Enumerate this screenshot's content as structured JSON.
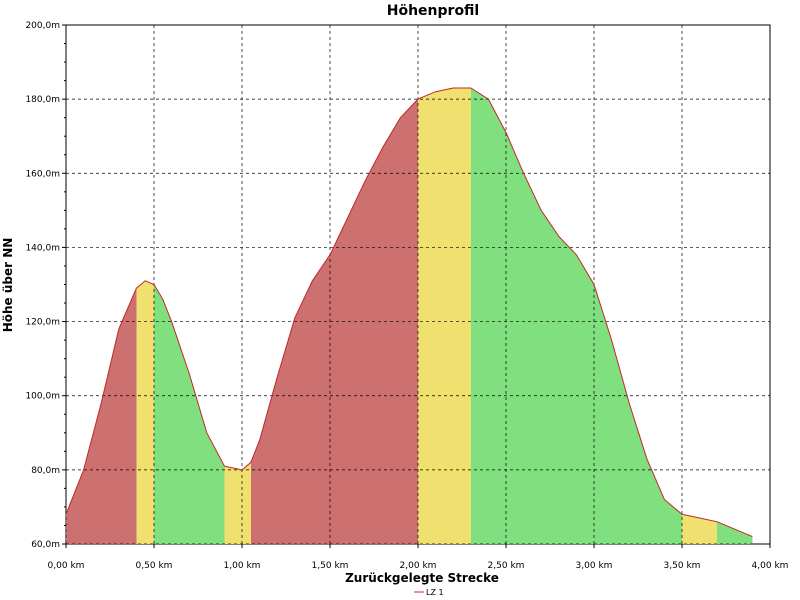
{
  "chart_data": {
    "type": "area",
    "title": "Höhenprofil",
    "xlabel": "Zurückgelegte Strecke",
    "ylabel": "Höhe über NN",
    "xlim": [
      0,
      4
    ],
    "ylim": [
      60,
      200
    ],
    "x_ticks": [
      0,
      0.5,
      1,
      1.5,
      2,
      2.5,
      3,
      3.5,
      4
    ],
    "x_tick_labels": [
      "0,00 km",
      "0,50 km",
      "1,00 km",
      "1,50 km",
      "2,00 km",
      "2,50 km",
      "3,00 km",
      "3,50 km",
      "4,00 km"
    ],
    "y_ticks": [
      60,
      80,
      100,
      120,
      140,
      160,
      180,
      200
    ],
    "y_tick_labels": [
      "60,0m",
      "80,0m",
      "100,0m",
      "120,0m",
      "140,0m",
      "160,0m",
      "180,0m",
      "200,0m"
    ],
    "grid": true,
    "legend_position": "bottom-center",
    "series": [
      {
        "name": "LZ 1",
        "x": [
          0,
          0.1,
          0.2,
          0.3,
          0.4,
          0.45,
          0.5,
          0.55,
          0.6,
          0.7,
          0.8,
          0.9,
          1.0,
          1.05,
          1.1,
          1.2,
          1.3,
          1.4,
          1.5,
          1.6,
          1.7,
          1.8,
          1.9,
          2.0,
          2.1,
          2.2,
          2.3,
          2.4,
          2.5,
          2.6,
          2.7,
          2.8,
          2.9,
          3.0,
          3.1,
          3.2,
          3.3,
          3.4,
          3.5,
          3.6,
          3.7,
          3.8,
          3.9
        ],
        "values": [
          68,
          80,
          98,
          118,
          129,
          131,
          130,
          126,
          120,
          106,
          90,
          81,
          80,
          82,
          88,
          105,
          121,
          131,
          138,
          148,
          158,
          167,
          175,
          180,
          182,
          183,
          183,
          180,
          171,
          160,
          150,
          143,
          138,
          130,
          115,
          98,
          83,
          72,
          68,
          67,
          66,
          64,
          62
        ]
      }
    ],
    "colors": {
      "line": "#c02828",
      "climb": "#cc7070",
      "flat": "#f0e070",
      "descent": "#80e080",
      "grid": "#000000"
    }
  }
}
